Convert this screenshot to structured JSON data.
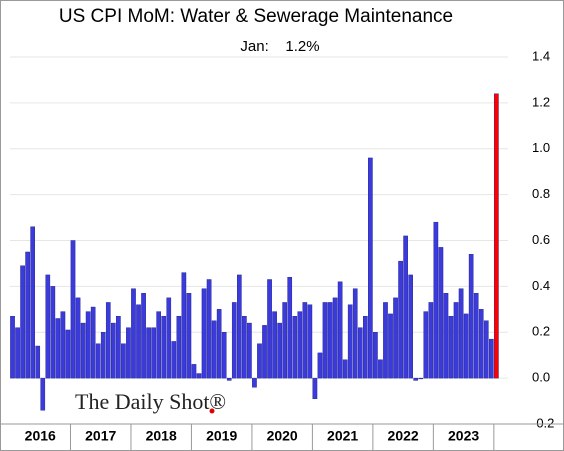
{
  "chart_data": {
    "type": "bar",
    "title": "US CPI MoM: Water & Sewerage Maintenance",
    "subtitle": "Jan:    1.2%",
    "watermark": "The Daily Shot®",
    "years": [
      "2016",
      "2017",
      "2018",
      "2019",
      "2020",
      "2021",
      "2022",
      "2023"
    ],
    "values": [
      0.27,
      0.22,
      0.49,
      0.55,
      0.66,
      0.14,
      -0.14,
      0.45,
      0.4,
      0.26,
      0.29,
      0.21,
      0.6,
      0.35,
      0.24,
      0.29,
      0.31,
      0.15,
      0.2,
      0.33,
      0.24,
      0.27,
      0.15,
      0.22,
      0.39,
      0.32,
      0.37,
      0.22,
      0.22,
      0.29,
      0.27,
      0.35,
      0.16,
      0.27,
      0.46,
      0.37,
      0.06,
      0.02,
      0.39,
      0.43,
      0.25,
      0.3,
      0.2,
      -0.01,
      0.33,
      0.45,
      0.27,
      0.24,
      -0.04,
      0.15,
      0.23,
      0.43,
      0.29,
      0.24,
      0.33,
      0.44,
      0.27,
      0.29,
      0.33,
      0.32,
      -0.09,
      0.11,
      0.33,
      0.33,
      0.35,
      0.42,
      0.08,
      0.32,
      0.39,
      0.22,
      0.27,
      0.96,
      0.2,
      0.08,
      0.33,
      0.28,
      0.35,
      0.51,
      0.62,
      0.45,
      -0.01,
      0.0,
      0.29,
      0.33,
      0.68,
      0.57,
      0.37,
      0.27,
      0.33,
      0.39,
      0.28,
      0.54,
      0.37,
      0.3,
      0.25,
      0.17,
      1.24
    ],
    "color": "#3b3bdc",
    "latest_color": "#ff0000",
    "ylim": [
      -0.2,
      1.4
    ],
    "yticks": [
      -0.2,
      {
        "value": 0,
        "label": "0.0"
      },
      0.2,
      0.4,
      0.6,
      0.8,
      {
        "value": 1,
        "label": "1.0"
      },
      1.2,
      1.4
    ],
    "grid": true
  }
}
